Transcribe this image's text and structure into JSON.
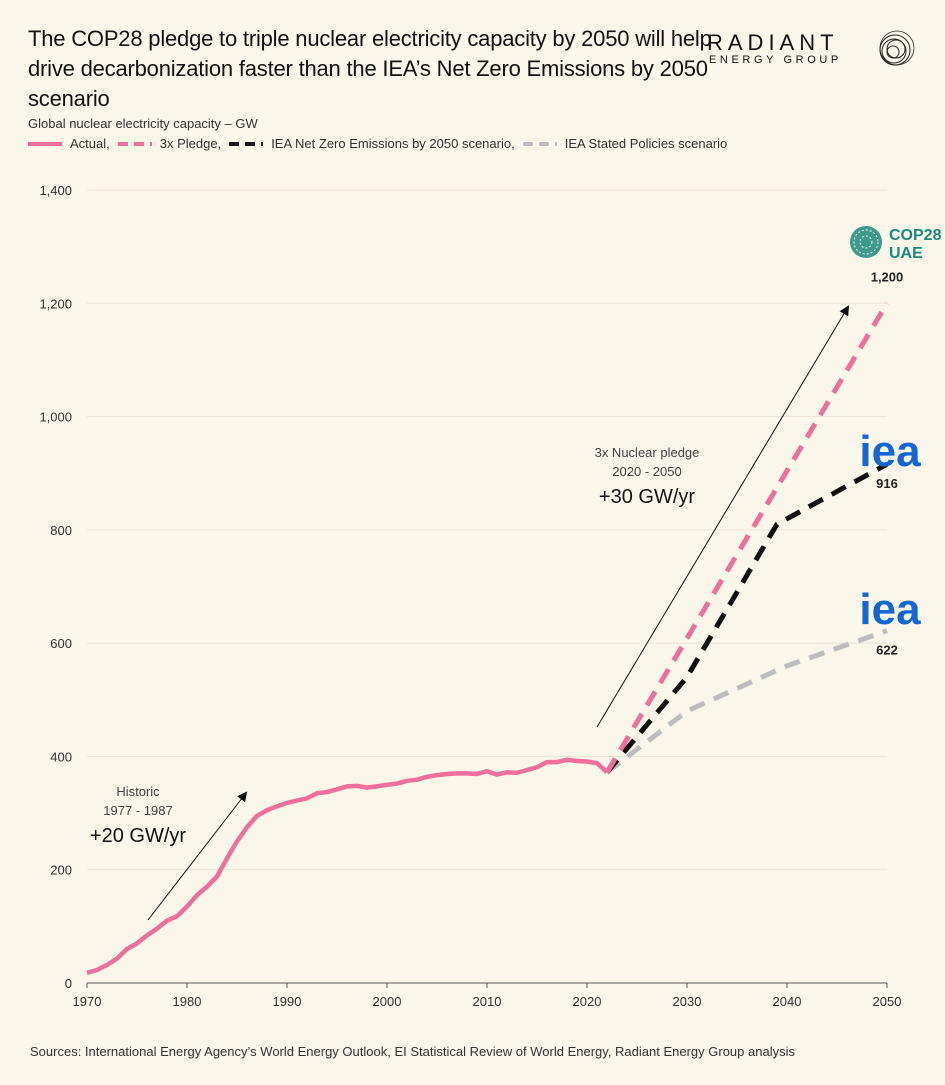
{
  "header": {
    "title": "The COP28 pledge to triple nuclear electricity capacity by 2050 will help drive decarbonization faster than the IEA’s Net Zero Emissions by 2050 scenario",
    "subtitle": "Global nuclear electricity capacity – GW"
  },
  "logo": {
    "word": "RADIANT",
    "sub": "ENERGY GROUP"
  },
  "legend": [
    {
      "label": "Actual,",
      "color": "#f06e9c",
      "dash": "solid"
    },
    {
      "label": "3x Pledge,",
      "color": "#f06e9c",
      "dash": "dashed"
    },
    {
      "label": "IEA Net Zero Emissions by 2050 scenario,",
      "color": "#111111",
      "dash": "dashed"
    },
    {
      "label": "IEA Stated Policies scenario",
      "color": "#bdbdbd",
      "dash": "dashed"
    }
  ],
  "sources": "Sources: International Energy Agency’s World Energy Outlook, EI Statistical Review of World Energy, Radiant Energy Group analysis",
  "chart_data": {
    "type": "line",
    "xlim": [
      1970,
      2050
    ],
    "ylim": [
      0,
      1400
    ],
    "x_ticks": [
      "1970",
      "1980",
      "1990",
      "2000",
      "2010",
      "2020",
      "2030",
      "2040",
      "2050"
    ],
    "y_ticks": [
      "0",
      "200",
      "400",
      "600",
      "800",
      "1,000",
      "1,200",
      "1,400"
    ],
    "grid": "horizontal",
    "series": [
      {
        "name": "Actual",
        "color": "#f06e9c",
        "style": "solid",
        "points": [
          [
            1970,
            18
          ],
          [
            1971,
            23
          ],
          [
            1972,
            32
          ],
          [
            1973,
            43
          ],
          [
            1974,
            60
          ],
          [
            1975,
            70
          ],
          [
            1976,
            84
          ],
          [
            1977,
            96
          ],
          [
            1978,
            110
          ],
          [
            1979,
            118
          ],
          [
            1980,
            135
          ],
          [
            1981,
            155
          ],
          [
            1982,
            170
          ],
          [
            1983,
            188
          ],
          [
            1984,
            220
          ],
          [
            1985,
            250
          ],
          [
            1986,
            275
          ],
          [
            1987,
            295
          ],
          [
            1988,
            305
          ],
          [
            1989,
            312
          ],
          [
            1990,
            318
          ],
          [
            1991,
            322
          ],
          [
            1992,
            326
          ],
          [
            1993,
            335
          ],
          [
            1994,
            337
          ],
          [
            1995,
            342
          ],
          [
            1996,
            347
          ],
          [
            1997,
            348
          ],
          [
            1998,
            345
          ],
          [
            1999,
            347
          ],
          [
            2000,
            350
          ],
          [
            2001,
            352
          ],
          [
            2002,
            357
          ],
          [
            2003,
            359
          ],
          [
            2004,
            364
          ],
          [
            2005,
            367
          ],
          [
            2006,
            369
          ],
          [
            2007,
            370
          ],
          [
            2008,
            370
          ],
          [
            2009,
            369
          ],
          [
            2010,
            374
          ],
          [
            2011,
            368
          ],
          [
            2012,
            372
          ],
          [
            2013,
            371
          ],
          [
            2014,
            376
          ],
          [
            2015,
            381
          ],
          [
            2016,
            390
          ],
          [
            2017,
            390
          ],
          [
            2018,
            394
          ],
          [
            2019,
            392
          ],
          [
            2020,
            391
          ],
          [
            2021,
            388
          ],
          [
            2022,
            372
          ]
        ]
      },
      {
        "name": "3x Pledge",
        "color": "#f06e9c",
        "style": "dashed",
        "points": [
          [
            2022,
            372
          ],
          [
            2050,
            1200
          ]
        ]
      },
      {
        "name": "IEA Net Zero Emissions by 2050 scenario",
        "color": "#111111",
        "style": "dashed",
        "points": [
          [
            2022,
            372
          ],
          [
            2030,
            540
          ],
          [
            2039,
            810
          ],
          [
            2050,
            916
          ]
        ]
      },
      {
        "name": "IEA Stated Policies scenario",
        "color": "#bdbdbd",
        "style": "dashed",
        "points": [
          [
            2022,
            372
          ],
          [
            2030,
            480
          ],
          [
            2040,
            560
          ],
          [
            2050,
            622
          ]
        ]
      }
    ],
    "end_labels": [
      {
        "series": "3x Pledge",
        "text": "1,200"
      },
      {
        "series": "IEA Net Zero Emissions by 2050 scenario",
        "text": "916"
      },
      {
        "series": "IEA Stated Policies scenario",
        "text": "622"
      }
    ],
    "annotations": {
      "historic": {
        "line1": "Historic",
        "line2": "1977 - 1987",
        "rate": "+20 GW/yr"
      },
      "pledge": {
        "line1": "3x Nuclear pledge",
        "line2": "2020 - 2050",
        "rate": "+30 GW/yr"
      }
    },
    "logos": {
      "cop_line1": "COP28",
      "cop_line2": "UAE",
      "iea": "iea"
    }
  }
}
